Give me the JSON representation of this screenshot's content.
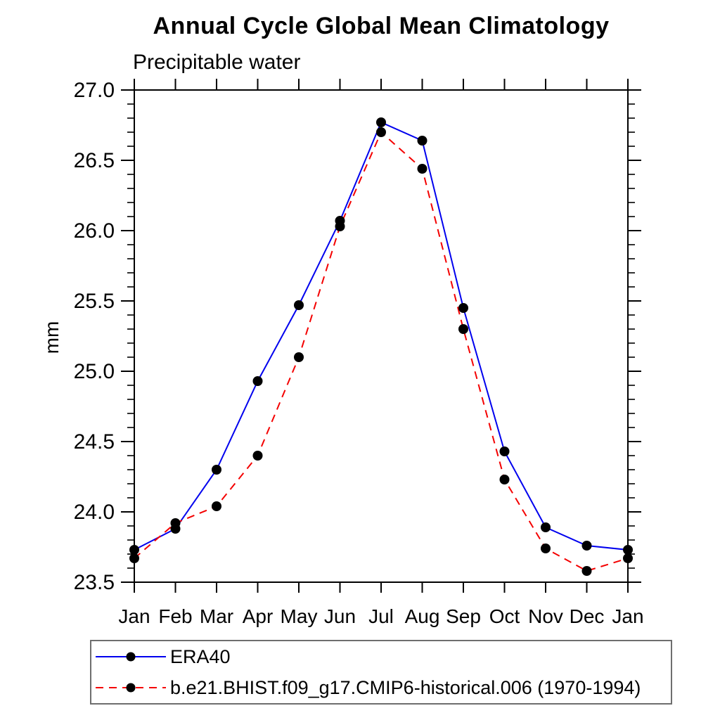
{
  "chart_data": {
    "type": "line",
    "title": "Annual Cycle Global Mean Climatology",
    "subtitle": "Precipitable water",
    "xlabel": "",
    "ylabel": "mm",
    "categories": [
      "Jan",
      "Feb",
      "Mar",
      "Apr",
      "May",
      "Jun",
      "Jul",
      "Aug",
      "Sep",
      "Oct",
      "Nov",
      "Dec",
      "Jan"
    ],
    "ylim": [
      23.5,
      27.0
    ],
    "yticks": [
      23.5,
      24.0,
      24.5,
      25.0,
      25.5,
      26.0,
      26.5,
      27.0
    ],
    "yminor_step": 0.1,
    "grid": false,
    "legend_position": "bottom-left-box",
    "axis_color": "#000000",
    "marker_color": "#000000",
    "series": [
      {
        "name": "ERA40",
        "color": "#0000ee",
        "style": "solid",
        "marker": "circle",
        "values": [
          23.73,
          23.88,
          24.3,
          24.93,
          25.47,
          26.07,
          26.77,
          26.64,
          25.45,
          24.43,
          23.89,
          23.76,
          23.73
        ]
      },
      {
        "name": "b.e21.BHIST.f09_g17.CMIP6-historical.006 (1970-1994)",
        "color": "#f40000",
        "style": "dashed",
        "marker": "circle",
        "values": [
          23.67,
          23.92,
          24.04,
          24.4,
          25.1,
          26.03,
          26.7,
          26.44,
          25.3,
          24.23,
          23.74,
          23.58,
          23.67
        ]
      }
    ]
  }
}
